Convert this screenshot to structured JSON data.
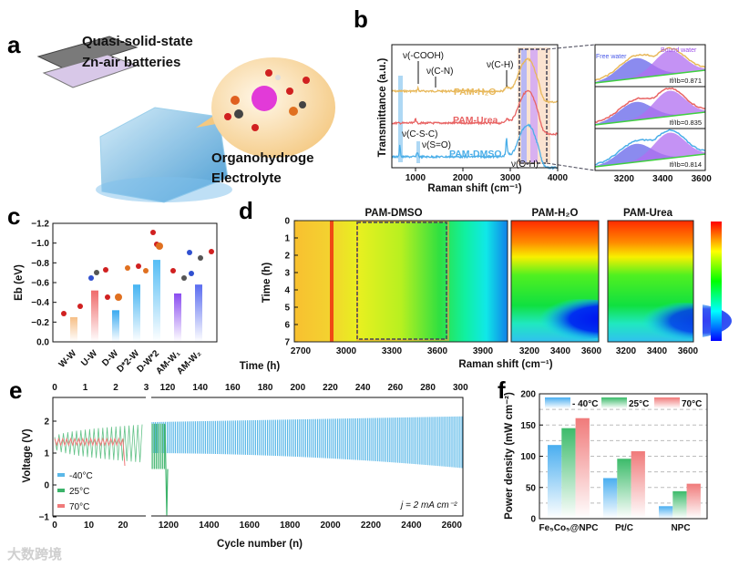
{
  "panel_labels": {
    "a": "a",
    "b": "b",
    "c": "c",
    "d": "d",
    "e": "e",
    "f": "f"
  },
  "panel_a": {
    "line1": "Quasi-solid-state",
    "line2": "Zn-air batteries",
    "line3": "Organohydroge",
    "line4": "Electrolyte"
  },
  "watermark": "大数跨境",
  "chart_data": [
    {
      "id": "b",
      "type": "line",
      "xlabel": "Raman shift (cm⁻¹)",
      "ylabel": "Transmittance (a.u.)",
      "xlim": [
        500,
        4000
      ],
      "xticks": [
        "1000",
        "2000",
        "3000",
        "4000"
      ],
      "series": [
        {
          "name": "PAM-H₂O",
          "color": "#e8b85a"
        },
        {
          "name": "PAM-Urea",
          "color": "#e86464"
        },
        {
          "name": "PAM-DMSO",
          "color": "#4aaee8"
        }
      ],
      "annotations": [
        "ν(-COOH)",
        "ν(C-N)",
        "ν(C-H)",
        "ν(C-S-C)",
        "ν(S=O)",
        "ν(O-H)"
      ],
      "inset": {
        "xlim": [
          3050,
          3620
        ],
        "xticks": [
          "3200",
          "3400",
          "3600"
        ],
        "free_label": "Free water",
        "bound_label": "Bound water",
        "ratios": [
          "If/Ib=0.871",
          "If/Ib=0.835",
          "If/Ib=0.814"
        ]
      }
    },
    {
      "id": "c",
      "type": "bar",
      "ylabel": "Eb (eV)",
      "ylim": [
        0,
        -1.2
      ],
      "yticks": [
        "0.0",
        "−0.2",
        "−0.4",
        "−0.6",
        "−0.8",
        "−1.0",
        "−1.2"
      ],
      "categories": [
        "W-W",
        "U-W",
        "D-W",
        "D*2-W",
        "D-W*2",
        "AM-W₁",
        "AM-W₂"
      ],
      "values": [
        -0.25,
        -0.52,
        -0.32,
        -0.58,
        -0.83,
        -0.49,
        -0.58
      ],
      "colors": [
        "#f6bf86",
        "#ef6b6b",
        "#3aaaf0",
        "#45b4f2",
        "#55bdf5",
        "#8a4cf0",
        "#5a6cf0"
      ]
    },
    {
      "id": "d",
      "type": "heatmap",
      "titles": [
        "PAM-DMSO",
        "PAM-H₂O",
        "PAM-Urea"
      ],
      "ylabel": "Time (h)",
      "xlabel": "Raman shift (cm⁻¹)",
      "ylim": [
        0,
        7
      ],
      "yticks": [
        "0",
        "1",
        "2",
        "3",
        "4",
        "5",
        "6",
        "7"
      ],
      "xticks_main": [
        "2700",
        "3000",
        "3300",
        "3600",
        "3900"
      ],
      "xticks_small": [
        "3200",
        "3400",
        "3600"
      ],
      "colormap": [
        "#0000ff",
        "#00ffff",
        "#00ff00",
        "#ffff00",
        "#ff0000"
      ]
    },
    {
      "id": "e",
      "type": "line",
      "ylabel": "Voltage (V)",
      "xlabel": "Cycle number (n)",
      "top_xlabel": "Time (h)",
      "ylim": [
        -1,
        2.6
      ],
      "yticks": [
        "−1",
        "0",
        "1",
        "2"
      ],
      "xticks_left": [
        "0",
        "10",
        "20"
      ],
      "xticks_right": [
        "1200",
        "1400",
        "1600",
        "1800",
        "2000",
        "2200",
        "2400",
        "2600"
      ],
      "top_ticks_left": [
        "0",
        "1",
        "2",
        "3"
      ],
      "top_ticks_right": [
        "120",
        "140",
        "160",
        "180",
        "200",
        "220",
        "240",
        "260",
        "280",
        "300"
      ],
      "series": [
        {
          "name": "-40°C",
          "color": "#5ab8e8"
        },
        {
          "name": "25°C",
          "color": "#3cb36a"
        },
        {
          "name": "70°C",
          "color": "#f07a7a"
        }
      ],
      "note": "j = 2 mA cm⁻²"
    },
    {
      "id": "f",
      "type": "bar",
      "ylabel": "Power density (mW cm⁻²)",
      "ylim": [
        0,
        200
      ],
      "yticks": [
        "0",
        "50",
        "100",
        "150",
        "200"
      ],
      "categories": [
        "Fe₅Co₅@NPC",
        "Pt/C",
        "NPC"
      ],
      "series": [
        {
          "name": "- 40°C",
          "color": "#4aaef0",
          "values": [
            118,
            65,
            20
          ]
        },
        {
          "name": "25°C",
          "color": "#3cbb6a",
          "values": [
            145,
            96,
            44
          ]
        },
        {
          "name": "70°C",
          "color": "#f07a7a",
          "values": [
            161,
            108,
            56
          ]
        }
      ]
    }
  ]
}
